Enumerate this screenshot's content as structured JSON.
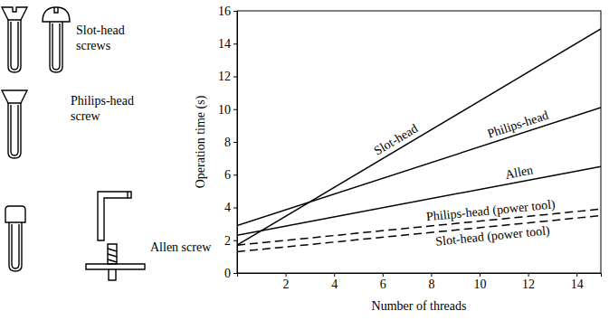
{
  "chart_data": {
    "type": "line",
    "x_label": "Number of threads",
    "y_label": "Operation time (s)",
    "x": [
      0,
      15
    ],
    "xlim": [
      0,
      15
    ],
    "xticks": [
      2,
      4,
      6,
      8,
      10,
      12,
      14
    ],
    "ylim": [
      0,
      16
    ],
    "yticks": [
      0,
      2,
      4,
      6,
      8,
      10,
      12,
      14,
      16
    ],
    "series": [
      {
        "name": "Slot-head",
        "color": "#000000",
        "line_style": "solid",
        "values": [
          1.7,
          14.9
        ]
      },
      {
        "name": "Philips-head",
        "color": "#000000",
        "line_style": "solid",
        "values": [
          2.9,
          10.1
        ]
      },
      {
        "name": "Allen",
        "color": "#000000",
        "line_style": "solid",
        "values": [
          2.3,
          6.5
        ]
      },
      {
        "name": "Philips-head (power tool)",
        "color": "#000000",
        "line_style": "dashed",
        "values": [
          1.7,
          3.9
        ]
      },
      {
        "name": "Slot-head (power tool)",
        "color": "#000000",
        "line_style": "dashed",
        "values": [
          1.3,
          3.5
        ]
      }
    ]
  },
  "illustration": {
    "slot_head_label": "Slot-head screws",
    "philips_head_label": "Philips-head screw",
    "allen_label": "Allen screw"
  }
}
